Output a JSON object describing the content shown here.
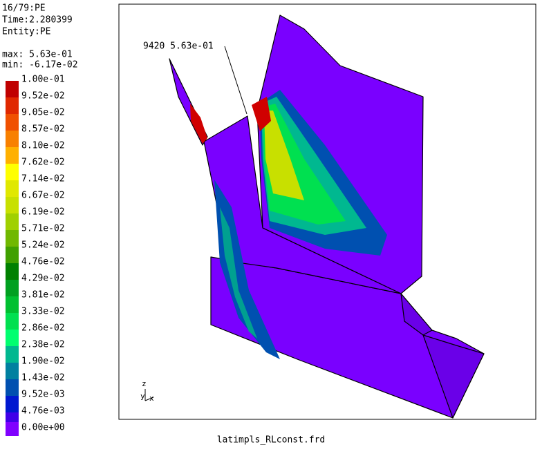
{
  "header": {
    "lines": [
      "16/79:PE",
      "Time:2.280399",
      "Entity:PE"
    ]
  },
  "range": {
    "max": "max: 5.63e-01",
    "min": "min: -6.17e-02"
  },
  "legend": [
    {
      "label": "1.00e-01",
      "color": "#c00000"
    },
    {
      "label": "9.52e-02",
      "color": "#e02800"
    },
    {
      "label": "9.05e-02",
      "color": "#f05000"
    },
    {
      "label": "8.57e-02",
      "color": "#f88000"
    },
    {
      "label": "8.10e-02",
      "color": "#ffb000"
    },
    {
      "label": "7.62e-02",
      "color": "#ffff00"
    },
    {
      "label": "7.14e-02",
      "color": "#e0e800"
    },
    {
      "label": "6.67e-02",
      "color": "#c8e000"
    },
    {
      "label": "6.19e-02",
      "color": "#a0d000"
    },
    {
      "label": "5.71e-02",
      "color": "#70b800"
    },
    {
      "label": "5.24e-02",
      "color": "#40a000"
    },
    {
      "label": "4.76e-02",
      "color": "#008000"
    },
    {
      "label": "4.29e-02",
      "color": "#00a020"
    },
    {
      "label": "3.81e-02",
      "color": "#00c030"
    },
    {
      "label": "3.33e-02",
      "color": "#00e050"
    },
    {
      "label": "2.86e-02",
      "color": "#00ff70"
    },
    {
      "label": "2.38e-02",
      "color": "#00b890"
    },
    {
      "label": "1.90e-02",
      "color": "#0080a0"
    },
    {
      "label": "1.43e-02",
      "color": "#0050b0"
    },
    {
      "label": "9.52e-03",
      "color": "#0018d0"
    },
    {
      "label": "4.76e-03",
      "color": "#4000e8"
    },
    {
      "label": "0.00e+00",
      "color": "#8000ff"
    }
  ],
  "annotation": "9420 5.63e-01",
  "axes": {
    "z": "z",
    "x": "x",
    "y": "y"
  },
  "footer": "latimpls_RLconst.frd"
}
